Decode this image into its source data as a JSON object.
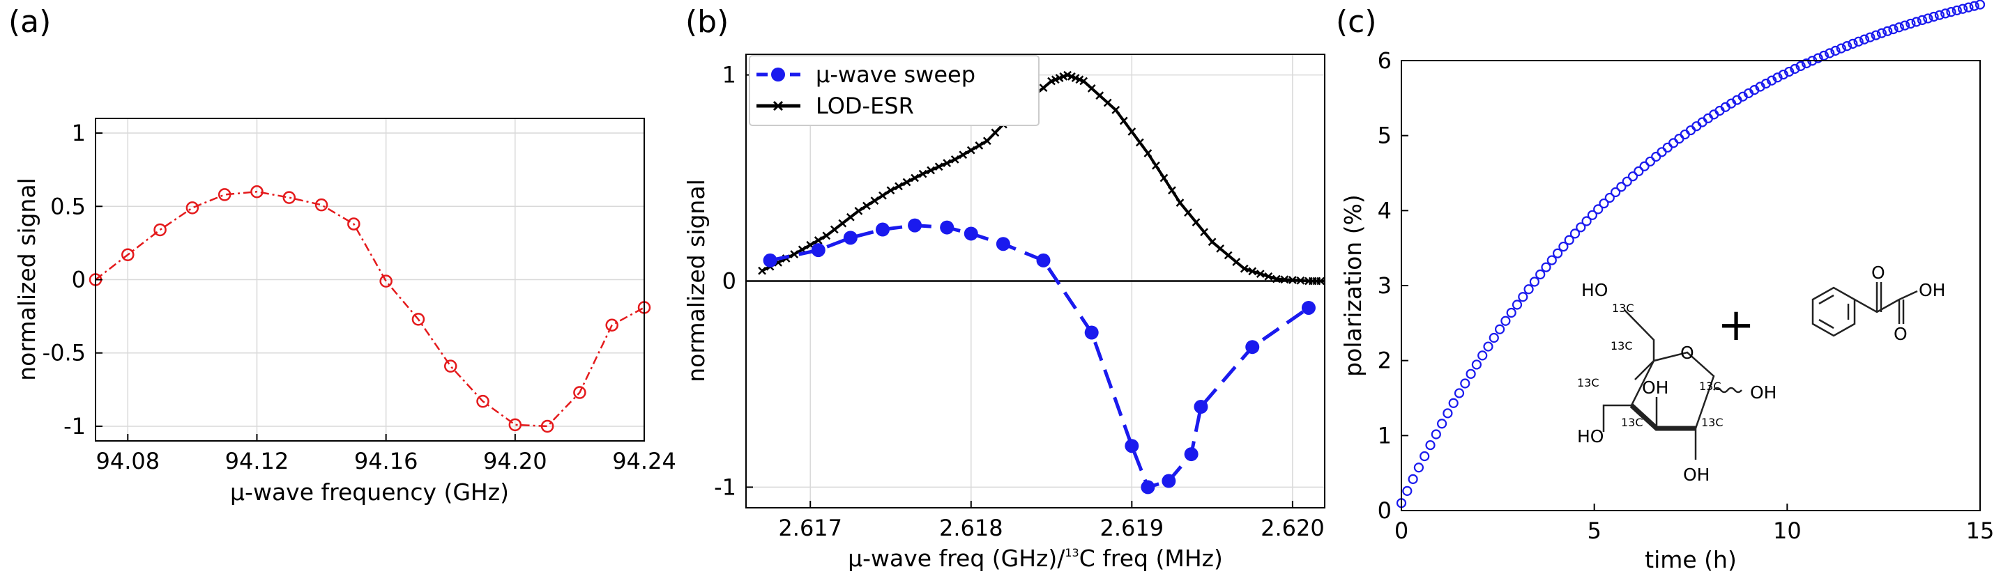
{
  "chart_data": [
    {
      "panel_label": "(a)",
      "type": "line",
      "xlabel": "μ-wave frequency (GHz)",
      "ylabel": "normalized signal",
      "xlim": [
        94.07,
        94.24
      ],
      "ylim": [
        -1.1,
        1.1
      ],
      "xticks": [
        94.08,
        94.12,
        94.16,
        94.2,
        94.24
      ],
      "xtick_labels": [
        "94.08",
        "94.12",
        "94.16",
        "94.20",
        "94.24"
      ],
      "yticks": [
        -1,
        -0.5,
        0,
        0.5,
        1
      ],
      "ytick_labels": [
        "-1",
        "-0.5",
        "0",
        "0.5",
        "1"
      ],
      "grid": true,
      "color": "#e41a1c",
      "series": [
        {
          "name": "μ-wave sweep",
          "x": [
            94.07,
            94.08,
            94.09,
            94.1,
            94.11,
            94.12,
            94.13,
            94.14,
            94.15,
            94.16,
            94.17,
            94.18,
            94.19,
            94.2,
            94.21,
            94.22,
            94.23,
            94.24
          ],
          "y": [
            0.0,
            0.17,
            0.34,
            0.49,
            0.58,
            0.6,
            0.56,
            0.51,
            0.38,
            -0.01,
            -0.27,
            -0.59,
            -0.83,
            -0.99,
            -1.0,
            -0.77,
            -0.31,
            -0.19
          ]
        }
      ]
    },
    {
      "panel_label": "(b)",
      "type": "line",
      "xlabel_main": "μ-wave freq (GHz)/",
      "xlabel_sup": "13",
      "xlabel_tail": "C freq (MHz)",
      "ylabel": "normalized signal",
      "xlim": [
        2.6166,
        2.6202
      ],
      "ylim": [
        -1.1,
        1.1
      ],
      "xticks": [
        2.617,
        2.618,
        2.619,
        2.62
      ],
      "xtick_labels": [
        "2.617",
        "2.618",
        "2.619",
        "2.620"
      ],
      "yticks": [
        -1,
        0,
        1
      ],
      "ytick_labels": [
        "-1",
        "0",
        "1"
      ],
      "grid": true,
      "legend": "top-left",
      "series": [
        {
          "name": "μ-wave sweep",
          "color": "#1a1aee",
          "x": [
            2.61675,
            2.61705,
            2.61725,
            2.61745,
            2.61765,
            2.61785,
            2.618,
            2.6182,
            2.61845,
            2.61875,
            2.619,
            2.6191,
            2.61923,
            2.61937,
            2.61943,
            2.61975,
            2.6201
          ],
          "y": [
            0.1,
            0.15,
            0.21,
            0.25,
            0.27,
            0.26,
            0.23,
            0.18,
            0.1,
            -0.25,
            -0.8,
            -1.0,
            -0.97,
            -0.84,
            -0.61,
            -0.32,
            -0.13
          ]
        },
        {
          "name": "LOD-ESR",
          "color": "#000000",
          "x": [
            2.6167,
            2.6169,
            2.6171,
            2.6173,
            2.6175,
            2.6177,
            2.6179,
            2.6181,
            2.6183,
            2.6185,
            2.6186,
            2.6187,
            2.6189,
            2.6191,
            2.6193,
            2.6195,
            2.6197,
            2.6199,
            2.6201,
            2.6202
          ],
          "y": [
            0.05,
            0.13,
            0.22,
            0.34,
            0.44,
            0.52,
            0.59,
            0.68,
            0.84,
            0.97,
            1.0,
            0.97,
            0.83,
            0.62,
            0.38,
            0.19,
            0.06,
            0.01,
            0.0,
            0.0
          ]
        }
      ]
    },
    {
      "panel_label": "(c)",
      "type": "scatter",
      "xlabel": "time (h)",
      "ylabel": "polarization (%)",
      "xlim": [
        0,
        15
      ],
      "ylim": [
        0,
        6
      ],
      "xticks": [
        0,
        5,
        10,
        15
      ],
      "xtick_labels": [
        "0",
        "5",
        "10",
        "15"
      ],
      "yticks": [
        0,
        1,
        2,
        3,
        4,
        5,
        6
      ],
      "ytick_labels": [
        "0",
        "1",
        "2",
        "3",
        "4",
        "5",
        "6"
      ],
      "grid": false,
      "color": "#1a1aee",
      "curve_model": "polarization = 7.5 * (1 - exp(-t/6.9)) + 0.1 (fit through visible markers)",
      "series": [
        {
          "name": "polarization",
          "t_step_h": 0.15,
          "n_points": 101
        }
      ]
    }
  ],
  "inset": {
    "molecule1_labels": [
      "HO",
      "13C",
      "13C",
      "O",
      "13C",
      "OH",
      "13C",
      "HO",
      "13C",
      "13C",
      "OH",
      "OH"
    ],
    "plus": "+",
    "molecule2_labels": [
      "O",
      "OH",
      "O"
    ]
  }
}
